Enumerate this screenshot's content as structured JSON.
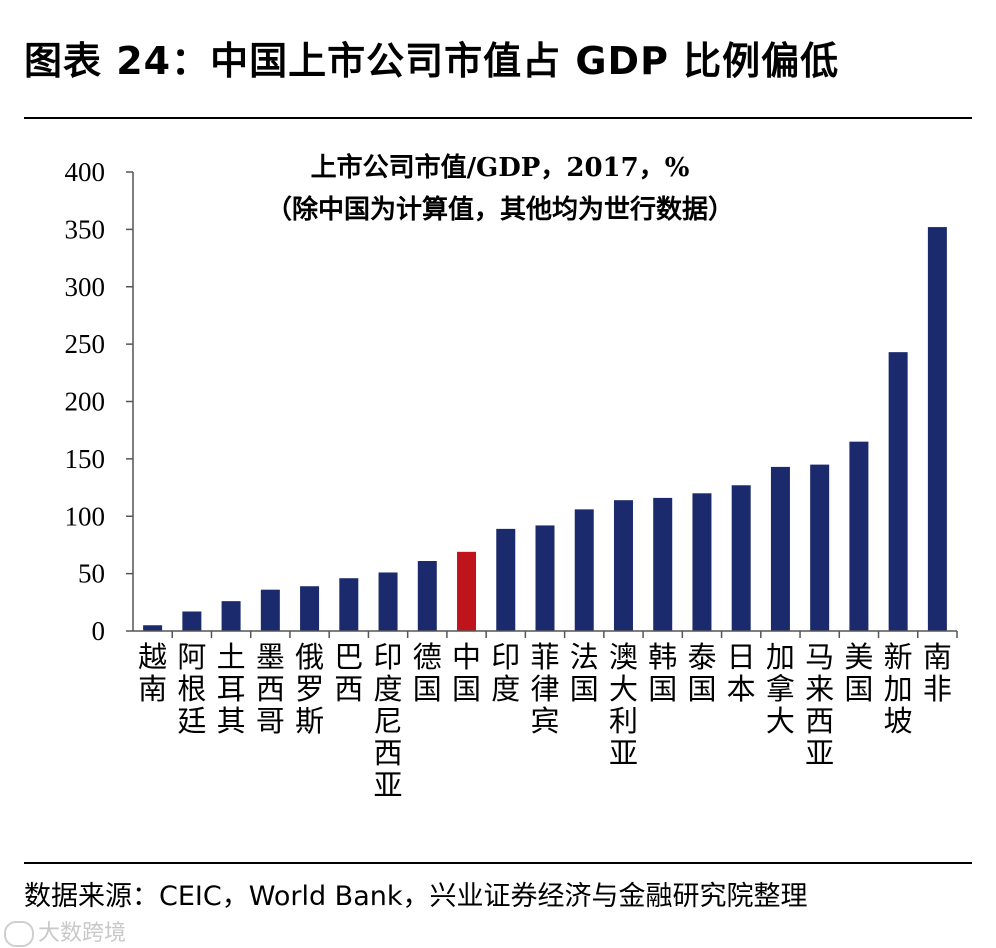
{
  "figure": {
    "title": "图表 24：中国上市公司市值占 GDP 比例偏低",
    "source": "数据来源：CEIC，World Bank，兴业证券经济与金融研究院整理",
    "watermark": "大数跨境"
  },
  "colors": {
    "bar": "#1a2a6c",
    "highlight": "#c0141c",
    "axis": "#555555",
    "text": "#000000"
  },
  "chart_data": {
    "type": "bar",
    "title": "上市公司市值/GDP，2017，%",
    "subtitle": "（除中国为计算值，其他均为世行数据）",
    "xlabel": "",
    "ylabel": "",
    "ylim": [
      0,
      400
    ],
    "yticks": [
      0,
      50,
      100,
      150,
      200,
      250,
      300,
      350,
      400
    ],
    "highlight_category": "中国",
    "categories": [
      "越南",
      "阿根廷",
      "土耳其",
      "墨西哥",
      "俄罗斯",
      "巴西",
      "印度尼西亚",
      "德国",
      "中国",
      "印度",
      "菲律宾",
      "法国",
      "澳大利亚",
      "韩国",
      "泰国",
      "日本",
      "加拿大",
      "马来西亚",
      "美国",
      "新加坡",
      "南非"
    ],
    "values": [
      5,
      17,
      26,
      36,
      39,
      46,
      51,
      61,
      69,
      89,
      92,
      106,
      114,
      116,
      120,
      127,
      143,
      145,
      165,
      243,
      352
    ]
  }
}
